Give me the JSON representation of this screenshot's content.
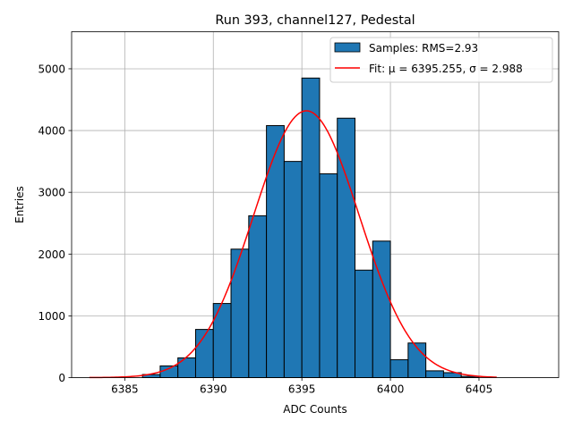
{
  "chart_data": {
    "type": "bar",
    "title": "Run 393, channel127, Pedestal",
    "xlabel": "ADC Counts",
    "ylabel": "Entries",
    "xlim": [
      6382,
      6409.5
    ],
    "ylim": [
      0,
      5600
    ],
    "xticks": [
      6385,
      6390,
      6395,
      6400,
      6405
    ],
    "yticks": [
      0,
      1000,
      2000,
      3000,
      4000,
      5000
    ],
    "grid": true,
    "legend_position": "top-right",
    "bins": [
      {
        "x0": 6386,
        "x1": 6387,
        "value": 50
      },
      {
        "x0": 6387,
        "x1": 6388,
        "value": 190
      },
      {
        "x0": 6388,
        "x1": 6389,
        "value": 320
      },
      {
        "x0": 6389,
        "x1": 6390,
        "value": 780
      },
      {
        "x0": 6390,
        "x1": 6391,
        "value": 1200
      },
      {
        "x0": 6391,
        "x1": 6392,
        "value": 2080
      },
      {
        "x0": 6392,
        "x1": 6393,
        "value": 2620
      },
      {
        "x0": 6393,
        "x1": 6394,
        "value": 4080
      },
      {
        "x0": 6394,
        "x1": 6395,
        "value": 3500
      },
      {
        "x0": 6395,
        "x1": 6396,
        "value": 4850
      },
      {
        "x0": 6396,
        "x1": 6397,
        "value": 3300
      },
      {
        "x0": 6397,
        "x1": 6398,
        "value": 4200
      },
      {
        "x0": 6398,
        "x1": 6399,
        "value": 1740
      },
      {
        "x0": 6399,
        "x1": 6400,
        "value": 2210
      },
      {
        "x0": 6400,
        "x1": 6401,
        "value": 290
      },
      {
        "x0": 6401,
        "x1": 6402,
        "value": 560
      },
      {
        "x0": 6402,
        "x1": 6403,
        "value": 110
      },
      {
        "x0": 6403,
        "x1": 6404,
        "value": 80
      },
      {
        "x0": 6404,
        "x1": 6405,
        "value": 20
      }
    ],
    "fit": {
      "mu": 6395.255,
      "sigma": 2.988,
      "amplitude": 4320,
      "x_range": [
        6383,
        6406
      ],
      "color": "#ff0000"
    },
    "bar_color": "#1f77b4",
    "legend": [
      {
        "label": "Samples: RMS=2.93",
        "kind": "patch",
        "color": "#1f77b4"
      },
      {
        "label": "Fit: μ = 6395.255, σ = 2.988",
        "kind": "line",
        "color": "#ff0000"
      }
    ]
  }
}
